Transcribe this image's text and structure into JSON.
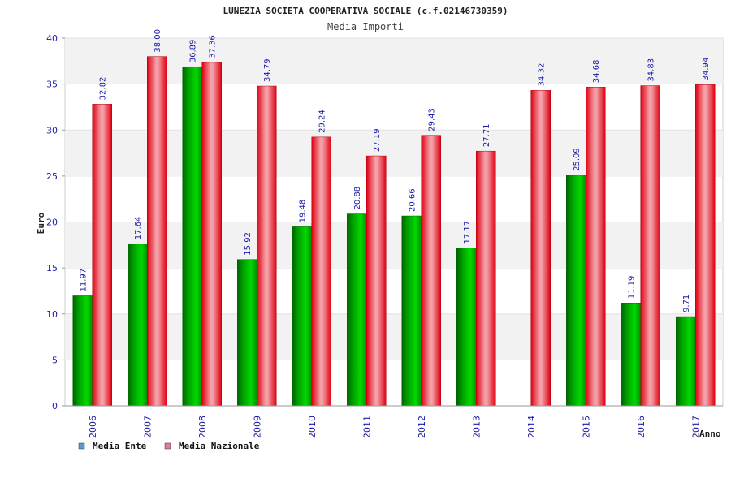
{
  "chart_data": {
    "type": "bar",
    "title": "LUNEZIA SOCIETA COOPERATIVA SOCIALE (c.f.02146730359)",
    "subtitle": "Media Importi",
    "xlabel": "Anno",
    "ylabel": "Euro",
    "ylim": [
      0,
      40
    ],
    "yticks": [
      0,
      5,
      10,
      15,
      20,
      25,
      30,
      35,
      40
    ],
    "grid": "horizontal bands",
    "legend_position": "bottom-left",
    "categories": [
      "2006",
      "2007",
      "2008",
      "2009",
      "2010",
      "2011",
      "2012",
      "2013",
      "2014",
      "2015",
      "2016",
      "2017"
    ],
    "series": [
      {
        "name": "Media Ente",
        "color": "#00aa00",
        "legend_color": "#5b9bd5",
        "values": [
          11.97,
          17.64,
          36.89,
          15.92,
          19.48,
          20.88,
          20.66,
          17.17,
          null,
          25.09,
          11.19,
          9.71
        ],
        "labels": [
          "11.97",
          "17.64",
          "36.89",
          "15.92",
          "19.48",
          "20.88",
          "20.66",
          "17.17",
          null,
          "25.09",
          "11.19",
          "9.71"
        ]
      },
      {
        "name": "Media Nazionale",
        "color": "#e8202a",
        "legend_color": "#e07aa0",
        "values": [
          32.82,
          38.0,
          37.36,
          34.79,
          29.24,
          27.19,
          29.43,
          27.71,
          34.32,
          34.68,
          34.83,
          34.94
        ],
        "labels": [
          "32.82",
          "38.00",
          "37.36",
          "34.79",
          "29.24",
          "27.19",
          "29.43",
          "27.71",
          "34.32",
          "34.68",
          "34.83",
          "34.94"
        ]
      }
    ]
  }
}
